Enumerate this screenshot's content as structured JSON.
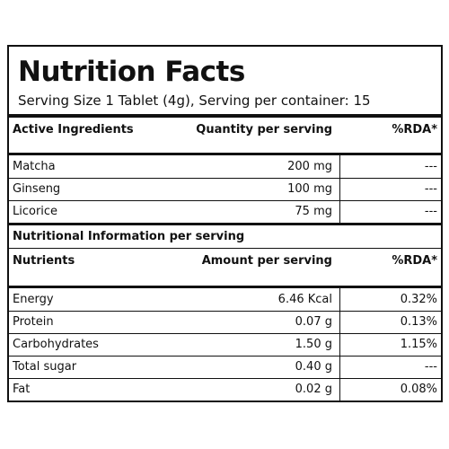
{
  "header": {
    "title": "Nutrition Facts",
    "serving": "Serving Size 1 Tablet (4g), Serving per container: 15"
  },
  "active_ingredients": {
    "columns": [
      "Active Ingredients",
      "Quantity per serving",
      "%RDA*"
    ],
    "rows": [
      [
        "Matcha",
        "200 mg",
        "---"
      ],
      [
        "Ginseng",
        "100 mg",
        "---"
      ],
      [
        "Licorice",
        "75 mg",
        "---"
      ]
    ]
  },
  "nutritional_information": {
    "title": "Nutritional Information per serving",
    "columns": [
      "Nutrients",
      "Amount per serving",
      "%RDA*"
    ],
    "rows": [
      [
        "Energy",
        "6.46 Kcal",
        "0.32%"
      ],
      [
        "Protein",
        "0.07 g",
        "0.13%"
      ],
      [
        "Carbohydrates",
        "1.50 g",
        "1.15%"
      ],
      [
        "Total sugar",
        "0.40 g",
        "---"
      ],
      [
        "Fat",
        "0.02 g",
        "0.08%"
      ]
    ]
  }
}
